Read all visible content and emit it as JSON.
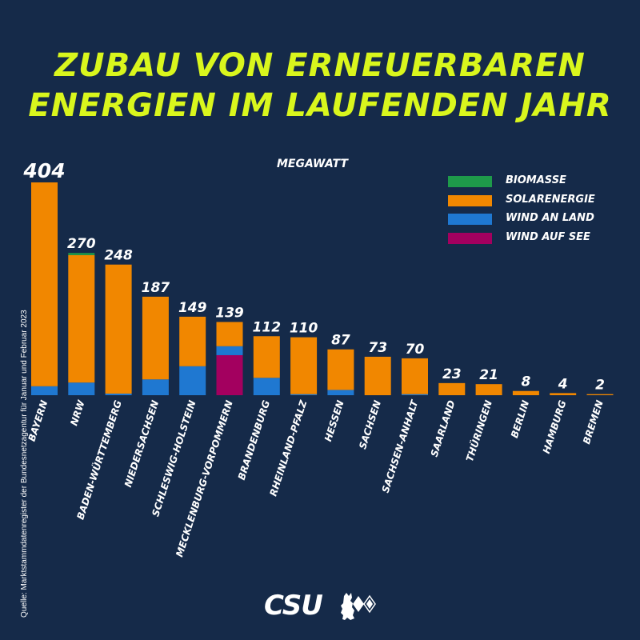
{
  "header": {
    "title_line_1": "ZUBAU VON ERNEUERBAREN",
    "title_line_2": "ENERGIEN IM LAUFENDEN JAHR"
  },
  "source_note": "Quelle: Marktstammdatenregister der Bundesnetzagentur für Januar und Februar 2023",
  "logo": {
    "text": "CSU"
  },
  "colors": {
    "background": "#152a49",
    "title": "#d9f61d",
    "biomasse": "#1e9a4a",
    "solarenergie": "#f18700",
    "wind_an_land": "#1f78d1",
    "wind_auf_see": "#a3005f"
  },
  "chart_data": {
    "type": "bar",
    "stacked": true,
    "unit_label": "MEGAWATT",
    "legend_position": "top-right",
    "categories": [
      "BAYERN",
      "NRW",
      "BADEN-WÜRTTEMBERG",
      "NIEDERSACHSEN",
      "SCHLESWIG-HOLSTEIN",
      "MECKLENBURG-VORPOMMERN",
      "BRANDENBURG",
      "RHEINLAND-PFALZ",
      "HESSEN",
      "SACHSEN",
      "SACHSEN-ANHALT",
      "SAARLAND",
      "THÜRINGEN",
      "BERLIN",
      "HAMBURG",
      "BREMEN"
    ],
    "totals": [
      404,
      270,
      248,
      187,
      149,
      139,
      112,
      110,
      87,
      73,
      70,
      23,
      21,
      8,
      4,
      2
    ],
    "series": [
      {
        "name": "WIND AUF SEE",
        "color_key": "wind_auf_see",
        "values": [
          0,
          0,
          0,
          0,
          0,
          76,
          0,
          0,
          0,
          0,
          0,
          0,
          0,
          0,
          0,
          0
        ]
      },
      {
        "name": "WIND AN LAND",
        "color_key": "wind_an_land",
        "values": [
          17,
          24,
          3,
          30,
          55,
          17,
          33,
          2,
          10,
          0,
          2,
          0,
          0,
          0,
          0,
          0
        ]
      },
      {
        "name": "SOLARENERGIE",
        "color_key": "solarenergie",
        "values": [
          387,
          242,
          245,
          157,
          94,
          46,
          79,
          108,
          77,
          73,
          68,
          23,
          21,
          8,
          4,
          2
        ]
      },
      {
        "name": "BIOMASSE",
        "color_key": "biomasse",
        "values": [
          0,
          4,
          0,
          0,
          0,
          0,
          0,
          0,
          0,
          0,
          0,
          0,
          0,
          0,
          0,
          0
        ]
      }
    ],
    "legend": [
      "BIOMASSE",
      "SOLARENERGIE",
      "WIND AN LAND",
      "WIND AUF SEE"
    ],
    "ylim": [
      0,
      404
    ]
  }
}
